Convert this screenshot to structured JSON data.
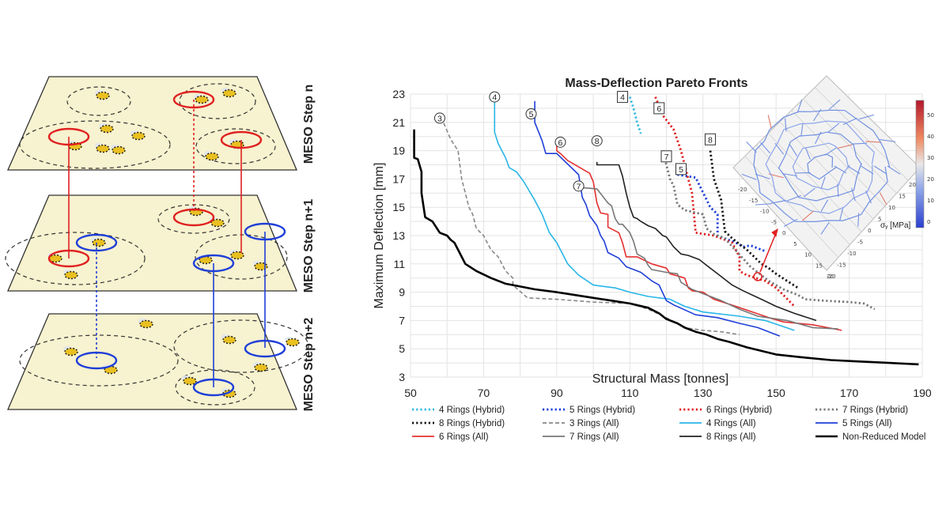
{
  "schematic": {
    "layer_labels": [
      "MESO Step n",
      "MESO Step n+1",
      "MESO Step n+2"
    ]
  },
  "colors": {
    "hybrid4": "#2db8e6",
    "hybrid5": "#1a3fd6",
    "hybrid6": "#e02020",
    "hybrid7": "#777777",
    "hybrid8": "#111111",
    "all3": "#888888",
    "all4": "#29b6e8",
    "all5": "#1f3fd8",
    "all6": "#e53030",
    "all7": "#777777",
    "all8": "#222222",
    "nonreduced": "#000000",
    "ring_red": "#e02020",
    "ring_blue": "#1f3fd8",
    "layer_fill": "#f7f2cf"
  },
  "chart_data": {
    "type": "line",
    "title": "Mass-Deflection Pareto Fronts",
    "xlabel": "Structural Mass [tonnes]",
    "ylabel": "Maximum Deflection [mm]",
    "xlim": [
      50,
      190
    ],
    "ylim": [
      3,
      23
    ],
    "xticks": [
      "50",
      "70",
      "90",
      "110",
      "130",
      "150",
      "170",
      "190"
    ],
    "yticks": [
      "3",
      "5",
      "7",
      "9",
      "11",
      "13",
      "15",
      "17",
      "19",
      "21",
      "23"
    ],
    "grid": true,
    "legend_position": "bottom",
    "series": [
      {
        "name": "4 Rings (Hybrid)",
        "style": "dotted",
        "color": "#2db8e6",
        "x": [
          110,
          111,
          112,
          113
        ],
        "y": [
          22.8,
          22,
          21,
          20.2
        ]
      },
      {
        "name": "5 Rings (Hybrid)",
        "style": "dotted",
        "color": "#1a3fd6",
        "x": [
          123,
          128,
          132,
          134,
          134,
          139,
          141,
          143,
          147
        ],
        "y": [
          17.3,
          17.1,
          15,
          14.5,
          13,
          12.5,
          12.2,
          12.3,
          11.9
        ]
      },
      {
        "name": "6 Rings (Hybrid)",
        "style": "dotted",
        "color": "#e02020",
        "x": [
          117,
          119,
          122,
          124,
          126,
          127,
          128,
          133,
          138,
          140,
          140,
          142,
          147,
          150,
          152,
          155
        ],
        "y": [
          22.8,
          21.5,
          20.5,
          19,
          17,
          16,
          13.2,
          13,
          12.5,
          11.5,
          10.5,
          10.2,
          9.8,
          9.3,
          8.8,
          8
        ]
      },
      {
        "name": "7 Rings (Hybrid)",
        "style": "dotted",
        "color": "#777777",
        "x": [
          119,
          120,
          121,
          122,
          123,
          125,
          130,
          131,
          133,
          136,
          143,
          148,
          152,
          156,
          158,
          163,
          170,
          174,
          177
        ],
        "y": [
          19,
          18,
          17,
          16.5,
          15.2,
          14.8,
          14.5,
          13.5,
          13.1,
          12.8,
          10.8,
          9.8,
          9.2,
          8.8,
          8.5,
          8.4,
          8.3,
          8.2,
          7.8
        ]
      },
      {
        "name": "8 Rings (Hybrid)",
        "style": "dotted",
        "color": "#111111",
        "x": [
          132,
          133,
          135,
          136,
          138,
          142,
          146,
          148,
          150,
          153,
          156
        ],
        "y": [
          19,
          17,
          15.5,
          13.3,
          12.8,
          12,
          11,
          10.7,
          10.3,
          9.8,
          9.3
        ]
      },
      {
        "name": "3 Rings (All)",
        "style": "dashed",
        "color": "#888888",
        "x": [
          58,
          59,
          61,
          63,
          64,
          66,
          67,
          68,
          70,
          71,
          72,
          74,
          76,
          78,
          78,
          82,
          90,
          100,
          110,
          115,
          120,
          125,
          130,
          135,
          140
        ],
        "y": [
          21.3,
          21,
          19.8,
          19,
          17,
          15,
          14.5,
          13.5,
          13,
          12.5,
          12,
          11.5,
          10.5,
          10,
          9.5,
          8.6,
          8.5,
          8.3,
          8.2,
          7.8,
          7.2,
          6.5,
          6.3,
          6.2,
          6
        ]
      },
      {
        "name": "4 Rings (All)",
        "style": "solid",
        "color": "#29b6e8",
        "x": [
          73,
          73,
          74,
          75,
          76,
          77,
          79,
          81,
          84,
          86,
          88,
          90,
          93,
          96,
          100,
          106,
          110,
          115,
          121,
          125,
          130,
          140,
          147,
          155
        ],
        "y": [
          23,
          20.3,
          19.5,
          19,
          18.5,
          17.8,
          17.5,
          16.8,
          15.5,
          14.5,
          13.2,
          12.5,
          11,
          10.2,
          9.5,
          9.3,
          9,
          8.7,
          8.5,
          8,
          7.6,
          7.3,
          7,
          6.3
        ]
      },
      {
        "name": "5 Rings (All)",
        "style": "solid",
        "color": "#1f3fd8",
        "x": [
          84,
          84,
          86,
          87,
          90,
          96,
          97,
          98,
          99,
          101,
          102,
          103,
          104,
          107,
          109,
          113,
          116,
          118,
          120,
          122,
          128,
          134,
          140,
          145,
          151
        ],
        "y": [
          22.5,
          21,
          19.7,
          18.8,
          18.8,
          17.3,
          15.7,
          15.2,
          14.4,
          13.7,
          13,
          12.6,
          11.8,
          11.4,
          10.8,
          10.4,
          9.8,
          9.5,
          8.4,
          8.1,
          7.4,
          7.2,
          6.8,
          6.5,
          5.9
        ]
      },
      {
        "name": "6 Rings (All)",
        "style": "solid",
        "color": "#e53030",
        "x": [
          90,
          90,
          91,
          93,
          99,
          100,
          101,
          102,
          104,
          104,
          107,
          108,
          109,
          112,
          116,
          120,
          121,
          125,
          126,
          127,
          130,
          133,
          139,
          148,
          152,
          160,
          168
        ],
        "y": [
          19.6,
          19,
          18.8,
          18.3,
          17.4,
          16.8,
          15.3,
          14.6,
          14.5,
          13.6,
          13.2,
          12.5,
          11.5,
          11.5,
          11,
          10.7,
          10.3,
          10,
          9.3,
          9.1,
          9,
          8.5,
          8,
          7.2,
          6.9,
          6.7,
          6.3
        ]
      },
      {
        "name": "7 Rings (All)",
        "style": "solid",
        "color": "#777777",
        "x": [
          95,
          96,
          101,
          104,
          105,
          106,
          107,
          108,
          110,
          111,
          112,
          114,
          115,
          116,
          120,
          123,
          124,
          127,
          130,
          135,
          140,
          145,
          153,
          160,
          167
        ],
        "y": [
          16.5,
          16.4,
          16.3,
          15.3,
          15.1,
          14.2,
          13.8,
          13.8,
          13.2,
          12.6,
          11.7,
          11.4,
          10.9,
          10.6,
          10.4,
          10.3,
          9.7,
          9.2,
          8.9,
          8.4,
          7.8,
          7.3,
          7,
          6.5,
          6.4
        ]
      },
      {
        "name": "8 Rings (All)",
        "style": "solid",
        "color": "#222222",
        "x": [
          101,
          101,
          102,
          104,
          107,
          108,
          109,
          110,
          111,
          112,
          113,
          115,
          117,
          119,
          120,
          122,
          124,
          126,
          129,
          131,
          134,
          138,
          141,
          146,
          150,
          155,
          161
        ],
        "y": [
          18.2,
          18,
          18,
          18,
          18,
          17.2,
          16,
          15,
          14.3,
          14.2,
          14,
          13.7,
          13.5,
          13,
          12.9,
          12.2,
          11.7,
          11.6,
          11.3,
          10.9,
          10.3,
          9.5,
          9.1,
          8.5,
          8,
          7.5,
          7
        ]
      },
      {
        "name": "Non-Reduced Model",
        "style": "solid",
        "color": "#000000",
        "x": [
          51,
          51,
          52,
          53,
          53,
          54,
          56,
          58,
          60,
          61,
          62,
          63,
          65,
          68,
          72,
          76,
          80,
          84,
          90,
          95,
          100,
          105,
          110,
          115,
          118,
          120,
          123,
          125,
          128,
          131,
          134,
          137,
          142,
          150,
          157,
          165,
          173,
          181,
          189
        ],
        "y": [
          20.5,
          18.5,
          18.4,
          17.5,
          16,
          14.3,
          14,
          13.2,
          13,
          12.7,
          12.5,
          12,
          11,
          10.5,
          10,
          9.6,
          9.4,
          9.2,
          9,
          8.8,
          8.6,
          8.4,
          8.2,
          7.9,
          7.5,
          7.1,
          6.8,
          6.5,
          6.2,
          6,
          5.7,
          5.5,
          5.1,
          4.6,
          4.4,
          4.2,
          4.1,
          4,
          3.9
        ]
      }
    ],
    "annotations": [
      {
        "label": "3",
        "shape": "circle",
        "x": 58,
        "y": 21.3
      },
      {
        "label": "4",
        "shape": "circle",
        "x": 73,
        "y": 22.8
      },
      {
        "label": "5",
        "shape": "circle",
        "x": 83,
        "y": 21.6
      },
      {
        "label": "6",
        "shape": "circle",
        "x": 91,
        "y": 19.6
      },
      {
        "label": "8",
        "shape": "circle",
        "x": 101,
        "y": 19.7
      },
      {
        "label": "7",
        "shape": "circle",
        "x": 96,
        "y": 16.5
      },
      {
        "label": "4",
        "shape": "square",
        "x": 108,
        "y": 22.8
      },
      {
        "label": "6",
        "shape": "square",
        "x": 118,
        "y": 22
      },
      {
        "label": "7",
        "shape": "square",
        "x": 120,
        "y": 18.6
      },
      {
        "label": "5",
        "shape": "square",
        "x": 124,
        "y": 17.7
      },
      {
        "label": "8",
        "shape": "square",
        "x": 132,
        "y": 19.8
      }
    ],
    "inset": {
      "colorbar_label": "σᵧ [MPa]",
      "colorbar_ticks": [
        "50",
        "40",
        "30",
        "20",
        "10",
        "0"
      ],
      "axis_ticks_left": [
        "-20",
        "-15",
        "-10",
        "-5",
        "0",
        "5",
        "10",
        "15",
        "20"
      ],
      "axis_ticks_right": [
        "20",
        "15",
        "10",
        "5",
        "0",
        "-5",
        "-10",
        "-15",
        "-20"
      ],
      "highlight": {
        "x": 145,
        "y": 10.1
      }
    }
  }
}
